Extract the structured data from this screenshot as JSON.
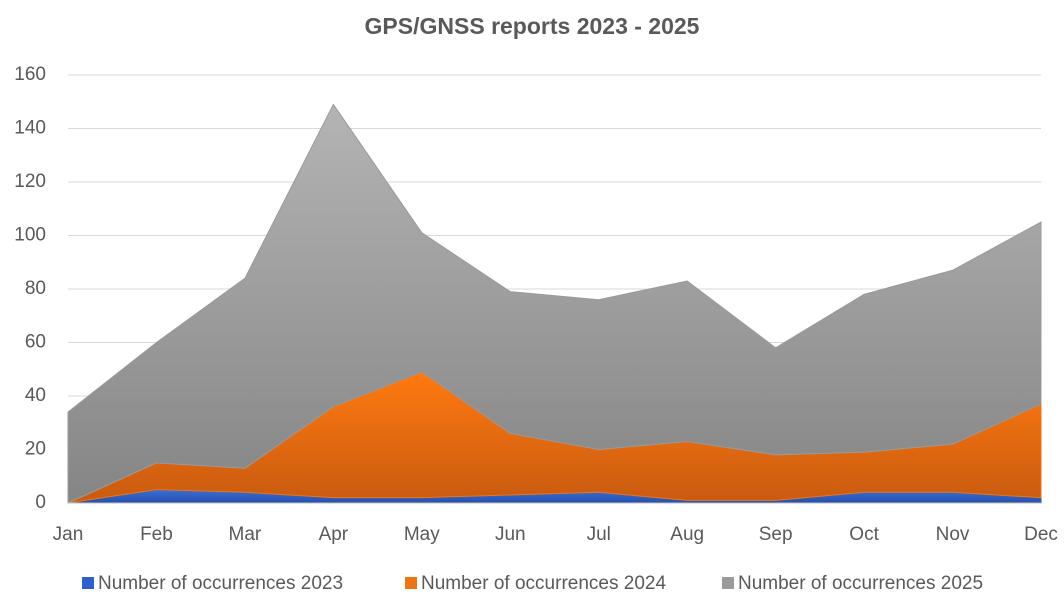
{
  "chart_data": {
    "type": "area",
    "stacked": true,
    "title": "GPS/GNSS reports 2023 - 2025",
    "categories": [
      "Jan",
      "Feb",
      "Mar",
      "Apr",
      "May",
      "Jun",
      "Jul",
      "Aug",
      "Sep",
      "Oct",
      "Nov",
      "Dec"
    ],
    "series": [
      {
        "name": "Number of occurrences 2023",
        "color": "#2f5fc8",
        "values": [
          0,
          5,
          4,
          2,
          2,
          3,
          4,
          1,
          1,
          4,
          4,
          2
        ]
      },
      {
        "name": "Number of occurrences 2024",
        "color": "#f07414",
        "values": [
          0,
          10,
          9,
          34,
          47,
          23,
          16,
          22,
          17,
          15,
          18,
          35
        ]
      },
      {
        "name": "Number of occurrences 2025",
        "color": "#9a9a9a",
        "values": [
          34,
          45,
          71,
          113,
          52,
          53,
          56,
          60,
          40,
          59,
          65,
          68
        ]
      }
    ],
    "ylim": [
      0,
      160
    ],
    "yticks": [
      0,
      20,
      40,
      60,
      80,
      100,
      120,
      140,
      160
    ],
    "grid": true,
    "legend": "bottom"
  }
}
